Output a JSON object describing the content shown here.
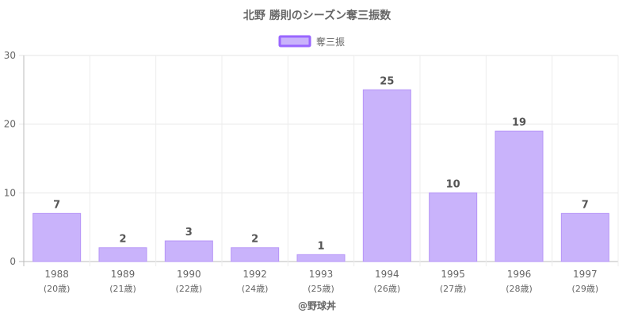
{
  "chart_data": {
    "type": "bar",
    "title": "北野 勝則のシーズン奪三振数",
    "categories": [
      "1988",
      "1989",
      "1990",
      "1992",
      "1993",
      "1994",
      "1995",
      "1996",
      "1997"
    ],
    "category_sublabels": [
      "(20歳)",
      "(21歳)",
      "(22歳)",
      "(24歳)",
      "(25歳)",
      "(26歳)",
      "(27歳)",
      "(28歳)",
      "(29歳)"
    ],
    "series": [
      {
        "name": "奪三振",
        "values": [
          7,
          2,
          3,
          2,
          1,
          25,
          10,
          19,
          7
        ]
      }
    ],
    "ylim": [
      0,
      30
    ],
    "yticks": [
      0,
      10,
      20,
      30
    ],
    "xlabel": "",
    "ylabel": "",
    "grid": true,
    "legend_position": "top-center",
    "data_labels": true,
    "colors": {
      "bar_fill": "#c9b3fb",
      "bar_stroke": "#b694f7",
      "legend_stroke": "#9966ff"
    }
  },
  "credit": "@野球丼"
}
